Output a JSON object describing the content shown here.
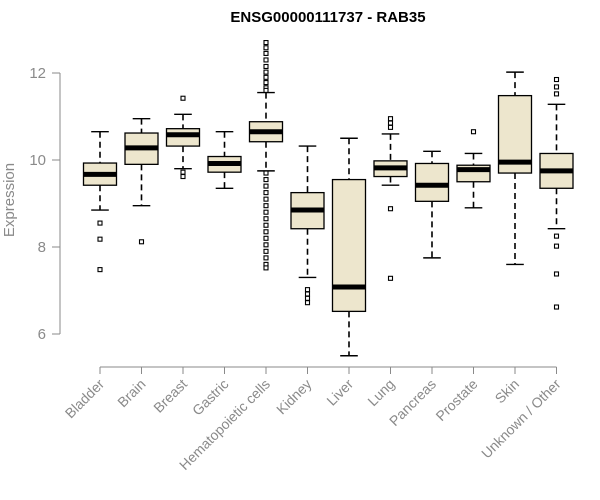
{
  "chart_data": {
    "type": "box",
    "title": "ENSG00000111737 - RAB35",
    "ylabel": "Expression",
    "xlabel": "",
    "ylim": [
      5.5,
      12.9
    ],
    "yticks": [
      6,
      8,
      10,
      12
    ],
    "grid": false,
    "legend": "none",
    "box_fill": "#ede6cd",
    "categories": [
      "Bladder",
      "Brain",
      "Breast",
      "Gastric",
      "Hematopoietic cells",
      "Kidney",
      "Liver",
      "Lung",
      "Pancreas",
      "Prostate",
      "Skin",
      "Unknown / Other"
    ],
    "boxes": [
      {
        "whisker_low": 8.85,
        "q1": 9.42,
        "median": 9.67,
        "q3": 9.93,
        "whisker_high": 10.65,
        "outliers": [
          8.55,
          8.18,
          7.48
        ]
      },
      {
        "whisker_low": 8.95,
        "q1": 9.9,
        "median": 10.28,
        "q3": 10.62,
        "whisker_high": 10.95,
        "outliers": [
          8.12
        ]
      },
      {
        "whisker_low": 9.8,
        "q1": 10.32,
        "median": 10.58,
        "q3": 10.72,
        "whisker_high": 11.05,
        "outliers": [
          11.42,
          9.72,
          9.62
        ]
      },
      {
        "whisker_low": 9.35,
        "q1": 9.72,
        "median": 9.92,
        "q3": 10.08,
        "whisker_high": 10.65,
        "outliers": []
      },
      {
        "whisker_low": 9.75,
        "q1": 10.42,
        "median": 10.65,
        "q3": 10.88,
        "whisker_high": 11.55,
        "outliers": [
          12.7,
          12.58,
          12.45,
          12.3,
          12.15,
          12.02,
          11.9,
          11.78,
          11.66,
          11.6,
          9.7,
          9.55,
          9.4,
          9.25,
          9.1,
          8.95,
          8.8,
          8.65,
          8.5,
          8.35,
          8.2,
          8.05,
          7.9,
          7.75,
          7.6,
          7.52
        ]
      },
      {
        "whisker_low": 7.3,
        "q1": 8.42,
        "median": 8.85,
        "q3": 9.25,
        "whisker_high": 10.32,
        "outliers": [
          7.02,
          6.92,
          6.82,
          6.72
        ]
      },
      {
        "whisker_low": 5.5,
        "q1": 6.52,
        "median": 7.08,
        "q3": 9.55,
        "whisker_high": 10.5,
        "outliers": []
      },
      {
        "whisker_low": 9.42,
        "q1": 9.62,
        "median": 9.82,
        "q3": 9.98,
        "whisker_high": 10.6,
        "outliers": [
          10.95,
          10.85,
          10.75,
          8.88,
          7.28
        ]
      },
      {
        "whisker_low": 7.75,
        "q1": 9.05,
        "median": 9.42,
        "q3": 9.92,
        "whisker_high": 10.2,
        "outliers": []
      },
      {
        "whisker_low": 8.9,
        "q1": 9.5,
        "median": 9.78,
        "q3": 9.88,
        "whisker_high": 10.15,
        "outliers": [
          10.65
        ]
      },
      {
        "whisker_low": 7.6,
        "q1": 9.7,
        "median": 9.95,
        "q3": 11.48,
        "whisker_high": 12.02,
        "outliers": []
      },
      {
        "whisker_low": 8.42,
        "q1": 9.35,
        "median": 9.75,
        "q3": 10.15,
        "whisker_high": 11.28,
        "outliers": [
          11.85,
          11.68,
          11.52,
          8.25,
          8.02,
          7.38,
          6.62
        ]
      }
    ]
  }
}
